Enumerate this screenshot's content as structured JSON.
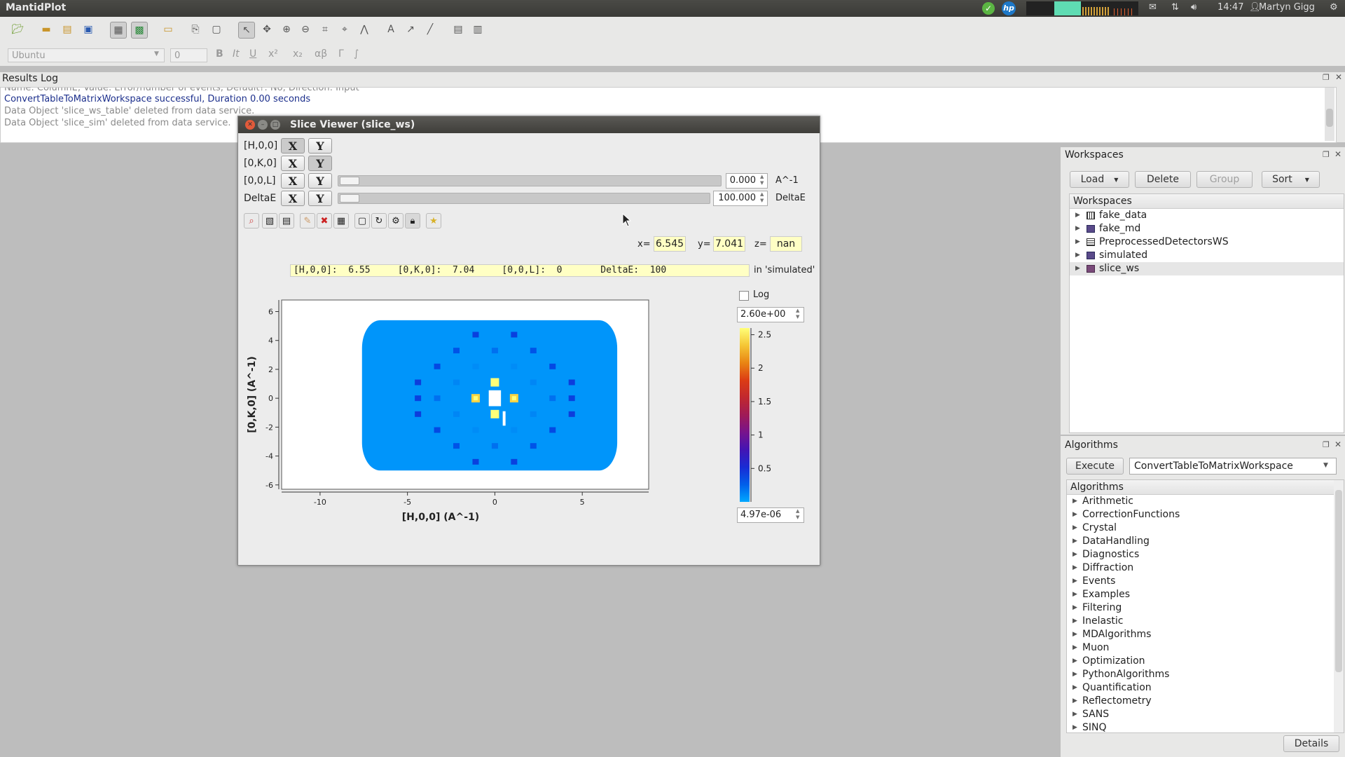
{
  "topbar": {
    "app_title": "MantidPlot",
    "time": "14:47",
    "user": "Martyn Gigg"
  },
  "toolbar": {
    "font_name": "Ubuntu",
    "font_size": "0",
    "format_buttons": [
      "B",
      "It",
      "U",
      "x²",
      "x₂",
      "αβ",
      "Γ",
      "∫"
    ]
  },
  "results_log": {
    "title": "Results Log",
    "lines": [
      {
        "text": "Name: ColumnE, Value: Error/number of events, Default?: No, Direction: Input",
        "color": "#8a8a8a"
      },
      {
        "text": "ConvertTableToMatrixWorkspace successful, Duration 0.00 seconds",
        "color": "#1c2f8c"
      },
      {
        "text": "Data Object 'slice_ws_table' deleted from data service.",
        "color": "#8a8a8a"
      },
      {
        "text": "Data Object 'slice_sim' deleted from data service.",
        "color": "#8a8a8a"
      }
    ]
  },
  "workspaces_dock": {
    "title": "Workspaces",
    "buttons": {
      "load": "Load",
      "delete": "Delete",
      "group": "Group",
      "sort": "Sort"
    },
    "tree_header": "Workspaces",
    "items": [
      {
        "name": "fake_data",
        "icon": "matrix-workspace-icon"
      },
      {
        "name": "fake_md",
        "icon": "md-workspace-icon"
      },
      {
        "name": "PreprocessedDetectorsWS",
        "icon": "table-workspace-icon"
      },
      {
        "name": "simulated",
        "icon": "md-workspace-icon"
      },
      {
        "name": "slice_ws",
        "icon": "md-workspace-icon",
        "selected": true
      }
    ]
  },
  "algorithms_dock": {
    "title": "Algorithms",
    "execute_label": "Execute",
    "selected_algorithm": "ConvertTableToMatrixWorkspace",
    "tree_header": "Algorithms",
    "categories": [
      "Arithmetic",
      "CorrectionFunctions",
      "Crystal",
      "DataHandling",
      "Diagnostics",
      "Diffraction",
      "Events",
      "Examples",
      "Filtering",
      "Inelastic",
      "MDAlgorithms",
      "Muon",
      "Optimization",
      "PythonAlgorithms",
      "Quantification",
      "Reflectometry",
      "SANS",
      "SINQ"
    ],
    "details_label": "Details"
  },
  "slice_viewer": {
    "title": "Slice Viewer (slice_ws)",
    "dimensions": [
      {
        "label": "[H,0,0]",
        "x": "X",
        "y": "Y",
        "mode": "X"
      },
      {
        "label": "[0,K,0]",
        "x": "X",
        "y": "Y",
        "mode": "Y"
      },
      {
        "label": "[0,0,L]",
        "x": "X",
        "y": "Y",
        "value": "0.000",
        "unit": "A^-1"
      },
      {
        "label": "DeltaE",
        "x": "X",
        "y": "Y",
        "value": "100.000",
        "unit": "DeltaE"
      }
    ],
    "coords": {
      "x_label": "x=",
      "x": "6.545",
      "y_label": "y=",
      "y": "7.041",
      "z_label": "z=",
      "z": "nan"
    },
    "line_info": "[H,0,0]:  6.55     [0,K,0]:  7.04     [0,0,L]:  0       DeltaE:  100",
    "line_info_suffix": "in 'simulated'",
    "log_label": "Log",
    "color_max": "2.60e+00",
    "color_min": "4.97e-06",
    "colorbar_ticks": [
      "2.5",
      "2",
      "1.5",
      "1",
      "0.5"
    ],
    "colorbar_tick_values": [
      2.5,
      2.0,
      1.5,
      1.0,
      0.5
    ]
  },
  "chart_data": {
    "type": "heatmap",
    "xlabel": "[H,0,0] (A^-1)",
    "ylabel": "[0,K,0] (A^-1)",
    "xlim": [
      -12.2,
      8.8
    ],
    "ylim": [
      -6.3,
      6.8
    ],
    "xticks": [
      -10,
      -5,
      0,
      5
    ],
    "yticks": [
      -6,
      -4,
      -2,
      0,
      2,
      4,
      6
    ],
    "background_level": 0.55,
    "region": {
      "xmin": -7.6,
      "xmax": 7.0,
      "ymin": -5.0,
      "ymax": 5.4
    },
    "peaks": [
      {
        "x": 0,
        "y": 1.1,
        "v": 2.6
      },
      {
        "x": 0,
        "y": -1.1,
        "v": 2.6
      },
      {
        "x": -1.1,
        "y": 0,
        "v": 2.4
      },
      {
        "x": 1.1,
        "y": 0,
        "v": 2.4
      },
      {
        "x": -1.1,
        "y": 2.2,
        "v": 0.1
      },
      {
        "x": 1.1,
        "y": 2.2,
        "v": 0.1
      },
      {
        "x": -1.1,
        "y": -2.2,
        "v": 0.1
      },
      {
        "x": 1.1,
        "y": -2.2,
        "v": 0.1
      },
      {
        "x": -2.2,
        "y": 1.1,
        "v": 0.12
      },
      {
        "x": 2.2,
        "y": 1.1,
        "v": 0.12
      },
      {
        "x": -2.2,
        "y": -1.1,
        "v": 0.12
      },
      {
        "x": 2.2,
        "y": -1.1,
        "v": 0.12
      },
      {
        "x": 0,
        "y": 3.3,
        "v": 0.2
      },
      {
        "x": 0,
        "y": -3.3,
        "v": 0.2
      },
      {
        "x": -3.3,
        "y": 0,
        "v": 0.2
      },
      {
        "x": 3.3,
        "y": 0,
        "v": 0.2
      },
      {
        "x": -2.2,
        "y": 3.3,
        "v": 0.3
      },
      {
        "x": 2.2,
        "y": 3.3,
        "v": 0.3
      },
      {
        "x": -2.2,
        "y": -3.3,
        "v": 0.3
      },
      {
        "x": 2.2,
        "y": -3.3,
        "v": 0.3
      },
      {
        "x": -3.3,
        "y": 2.2,
        "v": 0.35
      },
      {
        "x": 3.3,
        "y": 2.2,
        "v": 0.35
      },
      {
        "x": -3.3,
        "y": -2.2,
        "v": 0.35
      },
      {
        "x": 3.3,
        "y": -2.2,
        "v": 0.35
      },
      {
        "x": -1.1,
        "y": 4.4,
        "v": 0.4
      },
      {
        "x": 1.1,
        "y": 4.4,
        "v": 0.4
      },
      {
        "x": -1.1,
        "y": -4.4,
        "v": 0.4
      },
      {
        "x": 1.1,
        "y": -4.4,
        "v": 0.4
      },
      {
        "x": -4.4,
        "y": 1.1,
        "v": 0.42
      },
      {
        "x": 4.4,
        "y": 1.1,
        "v": 0.42
      },
      {
        "x": -4.4,
        "y": -1.1,
        "v": 0.42
      },
      {
        "x": 4.4,
        "y": -1.1,
        "v": 0.42
      },
      {
        "x": -4.4,
        "y": 0,
        "v": 0.4
      },
      {
        "x": 4.4,
        "y": 0,
        "v": 0.4
      }
    ]
  }
}
